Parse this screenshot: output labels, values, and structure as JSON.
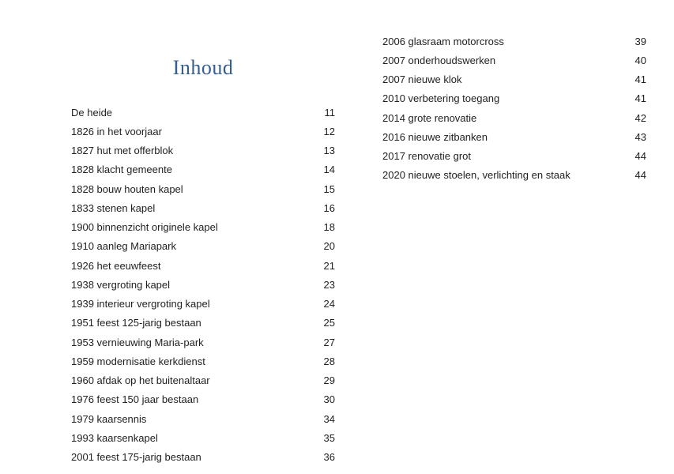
{
  "page": {
    "title": "Inhoud",
    "title_color": "#365f91",
    "text_color": "#1f1f1f",
    "background": "#ffffff"
  },
  "toc": {
    "left_column": [
      {
        "label": "De heide",
        "page": "11"
      },
      {
        "label": "1826 in het voorjaar",
        "page": "12"
      },
      {
        "label": "1827 hut met offerblok",
        "page": "13"
      },
      {
        "label": "1828 klacht gemeente",
        "page": "14"
      },
      {
        "label": "1828 bouw houten kapel",
        "page": "15"
      },
      {
        "label": "1833 stenen kapel",
        "page": "16"
      },
      {
        "label": "1900 binnenzicht originele kapel",
        "page": "18"
      },
      {
        "label": "1910 aanleg Mariapark",
        "page": "20"
      },
      {
        "label": "1926 het eeuwfeest",
        "page": "21"
      },
      {
        "label": "1938 vergroting kapel",
        "page": "23"
      },
      {
        "label": "1939 interieur vergroting kapel",
        "page": "24"
      },
      {
        "label": "1951 feest 125-jarig bestaan",
        "page": "25"
      },
      {
        "label": "1953 vernieuwing Maria-park",
        "page": "27"
      },
      {
        "label": "1959 modernisatie kerkdienst",
        "page": "28"
      },
      {
        "label": "1960 afdak op het buitenaltaar",
        "page": "29"
      },
      {
        "label": "1976 feest 150 jaar bestaan",
        "page": "30"
      },
      {
        "label": "1979 kaarsennis",
        "page": "34"
      },
      {
        "label": "1993 kaarsenkapel",
        "page": "35"
      },
      {
        "label": "2001 feest 175-jarig bestaan",
        "page": "36"
      }
    ],
    "right_column": [
      {
        "label": "2006 glasraam motorcross",
        "page": "39"
      },
      {
        "label": "2007 onderhoudswerken",
        "page": "40"
      },
      {
        "label": "2007 nieuwe klok",
        "page": "41"
      },
      {
        "label": "2010 verbetering toegang",
        "page": "41"
      },
      {
        "label": "2014 grote renovatie",
        "page": "42"
      },
      {
        "label": "2016 nieuwe zitbanken",
        "page": "43"
      },
      {
        "label": "2017 renovatie grot",
        "page": "44"
      },
      {
        "label": "2020 nieuwe stoelen, verlichting en staak",
        "page": "44"
      }
    ]
  }
}
